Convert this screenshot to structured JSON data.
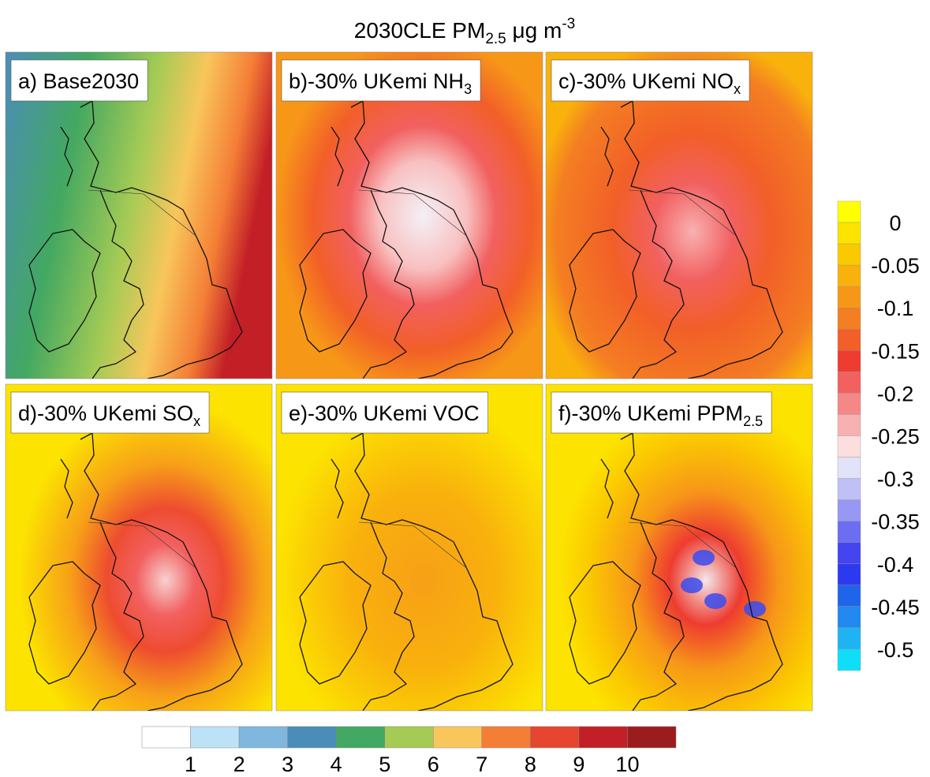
{
  "header": {
    "title": {
      "main": "2030CLE PM",
      "sub": "2.5",
      "unit": " μg m",
      "sup": "-3"
    }
  },
  "panels": [
    {
      "label": "a) Base2030"
    },
    {
      "label": "b)-30% UKemi NH",
      "sub": "3"
    },
    {
      "label": "c)-30% UKemi NO",
      "sub": "x"
    },
    {
      "label": "d)-30% UKemi SO",
      "sub": "x"
    },
    {
      "label": "e)-30% UKemi VOC"
    },
    {
      "label": "f)-30% UKemi PPM",
      "sub": "2.5"
    }
  ],
  "colorbars": {
    "absolute": {
      "lim": [
        0,
        11
      ],
      "ticks": [
        1,
        2,
        3,
        4,
        5,
        6,
        7,
        8,
        9,
        10
      ],
      "colors": [
        "#ffffff",
        "#bde2f7",
        "#7fb7df",
        "#4b8db9",
        "#43a861",
        "#a5cb55",
        "#f8c65b",
        "#f47e36",
        "#e6452f",
        "#c31f27",
        "#9c1b1d"
      ]
    },
    "difference": {
      "lim": [
        0.025,
        -0.525
      ],
      "ticks": [
        0,
        -0.05,
        -0.1,
        -0.15,
        -0.2,
        -0.25,
        -0.3,
        -0.35,
        -0.4,
        -0.45,
        -0.5
      ],
      "colors": [
        "#ffff00",
        "#fce300",
        "#fbc900",
        "#f9b10c",
        "#f79718",
        "#f47e22",
        "#f25f28",
        "#ee3c30",
        "#f26060",
        "#f58787",
        "#f8b1b1",
        "#fcdede",
        "#e2e2f8",
        "#c0c0f7",
        "#9797f4",
        "#6d6df2",
        "#4444f1",
        "#2c3aef",
        "#1f64e9",
        "#2189ef",
        "#1fb3f4",
        "#10def9"
      ]
    }
  }
}
